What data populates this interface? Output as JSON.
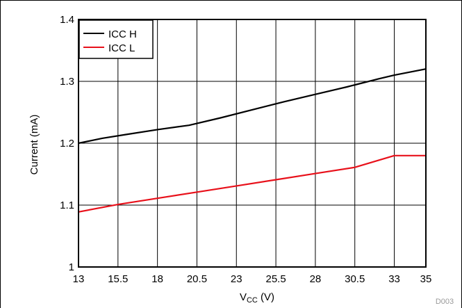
{
  "chart_data": {
    "type": "line",
    "xlabel_main": "V",
    "xlabel_sub": "CC",
    "xlabel_unit": " (V)",
    "ylabel": "Current (mA)",
    "xlim": [
      13,
      35
    ],
    "ylim": [
      1.0,
      1.4
    ],
    "xticks": [
      13,
      15.5,
      18,
      20.5,
      23,
      25.5,
      28,
      30.5,
      33,
      35
    ],
    "xtick_labels": [
      "13",
      "15.5",
      "18",
      "20.5",
      "23",
      "25.5",
      "28",
      "30.5",
      "33",
      "35"
    ],
    "yticks": [
      1.0,
      1.1,
      1.2,
      1.3,
      1.4
    ],
    "ytick_labels": [
      "1",
      "1.1",
      "1.2",
      "1.3",
      "1.4"
    ],
    "grid": true,
    "legend_position": "top-left",
    "watermark": "D003",
    "series": [
      {
        "name": "ICC H",
        "color": "#000000",
        "x": [
          13,
          14.5,
          16,
          18,
          20,
          22,
          24,
          26,
          28,
          30,
          32,
          33,
          35
        ],
        "y": [
          1.2,
          1.208,
          1.214,
          1.222,
          1.229,
          1.241,
          1.254,
          1.267,
          1.279,
          1.291,
          1.304,
          1.31,
          1.32
        ]
      },
      {
        "name": "ICC L",
        "color": "#e8101a",
        "x": [
          13,
          15.5,
          18,
          20.5,
          23,
          25.5,
          28,
          30.5,
          33,
          35
        ],
        "y": [
          1.089,
          1.101,
          1.111,
          1.121,
          1.131,
          1.141,
          1.151,
          1.161,
          1.18,
          1.18
        ]
      }
    ]
  }
}
